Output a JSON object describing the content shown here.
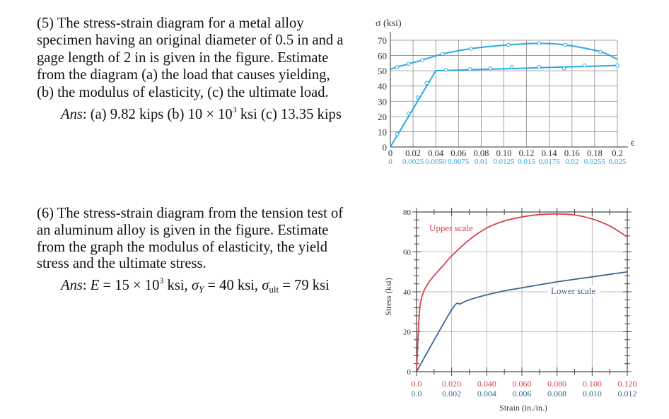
{
  "problems": [
    {
      "lines": [
        "(5) The stress-strain diagram for a metal alloy",
        "specimen having an original diameter of 0.5 in and a",
        "gage length of 2 in is given in the figure. Estimate",
        "from the diagram (a) the load that causes yielding,",
        "(b) the modulus of elasticity, (c) the ultimate load."
      ],
      "answer": [
        {
          "t": "Ans",
          "s": "i"
        },
        {
          "t": ": (a) 9.82 kips (b) 10 × 10",
          "s": "n"
        },
        {
          "t": "3",
          "s": "sup"
        },
        {
          "t": " ksi (c) 13.35 kips",
          "s": "n"
        }
      ]
    },
    {
      "lines": [
        "(6) The stress-strain diagram from the tension test of",
        "an aluminum alloy is given in the figure. Estimate",
        "from the graph the modulus of elasticity, the yield",
        "stress and the ultimate stress."
      ],
      "answer": [
        {
          "t": "Ans",
          "s": "i"
        },
        {
          "t": ": ",
          "s": "n"
        },
        {
          "t": "E",
          "s": "i"
        },
        {
          "t": " = 15 × 10",
          "s": "n"
        },
        {
          "t": "3",
          "s": "sup"
        },
        {
          "t": " ksi, ",
          "s": "n"
        },
        {
          "t": "σ",
          "s": "i"
        },
        {
          "t": "Y",
          "s": "sub i"
        },
        {
          "t": " = 40 ksi, ",
          "s": "n"
        },
        {
          "t": "σ",
          "s": "i"
        },
        {
          "t": "ult",
          "s": "sub"
        },
        {
          "t": " = 79 ksi",
          "s": "n"
        }
      ]
    }
  ],
  "chart_data": [
    {
      "type": "line",
      "ylabel": "σ (ksi)",
      "xlabel": "ϵ",
      "ylim": [
        0,
        70
      ],
      "xlim": [
        0,
        0.2
      ],
      "grid": true,
      "yticks": [
        "0",
        "10",
        "20",
        "30",
        "40",
        "50",
        "60",
        "70"
      ],
      "xticks_upper": [
        "0",
        "0.02",
        "0.04",
        "0.06",
        "0.08",
        "0.10",
        "0.12",
        "0.14",
        "0.16",
        "0.18",
        "0.2"
      ],
      "xticks_lower": [
        "0",
        "0.0025",
        "0.0050",
        "0.0075",
        "0.01",
        "0.0125",
        "0.015",
        "0.0175",
        "0.02",
        "0.0255",
        "0.025"
      ],
      "colors": {
        "line": "#2aa9e0",
        "lower_ticks": "#2aa9e0"
      },
      "series": [
        {
          "x": [
            0,
            0.006,
            0.016,
            0.028,
            0.046,
            0.071,
            0.104,
            0.131,
            0.154,
            0.185,
            0.2
          ],
          "y": [
            51,
            52.5,
            54.5,
            57,
            61,
            64.5,
            67,
            68,
            67,
            62.5,
            57.5
          ],
          "markers": [
            false,
            true,
            true,
            true,
            true,
            true,
            true,
            true,
            true,
            true,
            false
          ]
        },
        {
          "x": [
            0,
            0.006,
            0.016,
            0.024,
            0.032,
            0.04,
            0.049,
            0.07,
            0.088,
            0.107,
            0.131,
            0.153,
            0.171,
            0.2
          ],
          "y": [
            0,
            8.5,
            22,
            32.5,
            42,
            50,
            50.5,
            51,
            51.5,
            52.5,
            52.5,
            51.5,
            53.5,
            53.5
          ],
          "markers": [
            false,
            true,
            true,
            true,
            true,
            false,
            true,
            true,
            true,
            true,
            true,
            true,
            true,
            true
          ]
        }
      ]
    },
    {
      "type": "line",
      "ylabel": "Stress (ksi)",
      "xlabel": "Strain (in./in.)",
      "ylim": [
        0,
        80
      ],
      "grid": true,
      "yticks": [
        "0",
        "20",
        "40",
        "60",
        "80"
      ],
      "xticks_upper": [
        "0.0",
        "0.020",
        "0.040",
        "0.060",
        "0.080",
        "0.100",
        "0.120"
      ],
      "xticks_lower": [
        "0.0",
        "0.002",
        "0.004",
        "0.006",
        "0.008",
        "0.010",
        "0.012"
      ],
      "series": [
        {
          "name": "Upper scale",
          "color": "#d8434e",
          "xlim": [
            0,
            0.12
          ],
          "x": [
            0,
            0.001,
            0.002,
            0.004,
            0.008,
            0.015,
            0.02,
            0.03,
            0.04,
            0.05,
            0.06,
            0.07,
            0.08,
            0.09,
            0.1,
            0.11,
            0.12
          ],
          "y": [
            0,
            20,
            33,
            40,
            46,
            53,
            58,
            66,
            72,
            75.5,
            77.5,
            78.7,
            79,
            78.5,
            76.5,
            73,
            67.5
          ]
        },
        {
          "name": "Lower scale",
          "color": "#3a6696",
          "xlim": [
            0,
            0.012
          ],
          "x": [
            0,
            0.002,
            0.0025,
            0.003,
            0.004,
            0.005,
            0.006,
            0.008,
            0.01,
            0.012
          ],
          "y": [
            0,
            31,
            34,
            36,
            38.5,
            40.5,
            42,
            45,
            47.5,
            50
          ]
        }
      ]
    }
  ]
}
